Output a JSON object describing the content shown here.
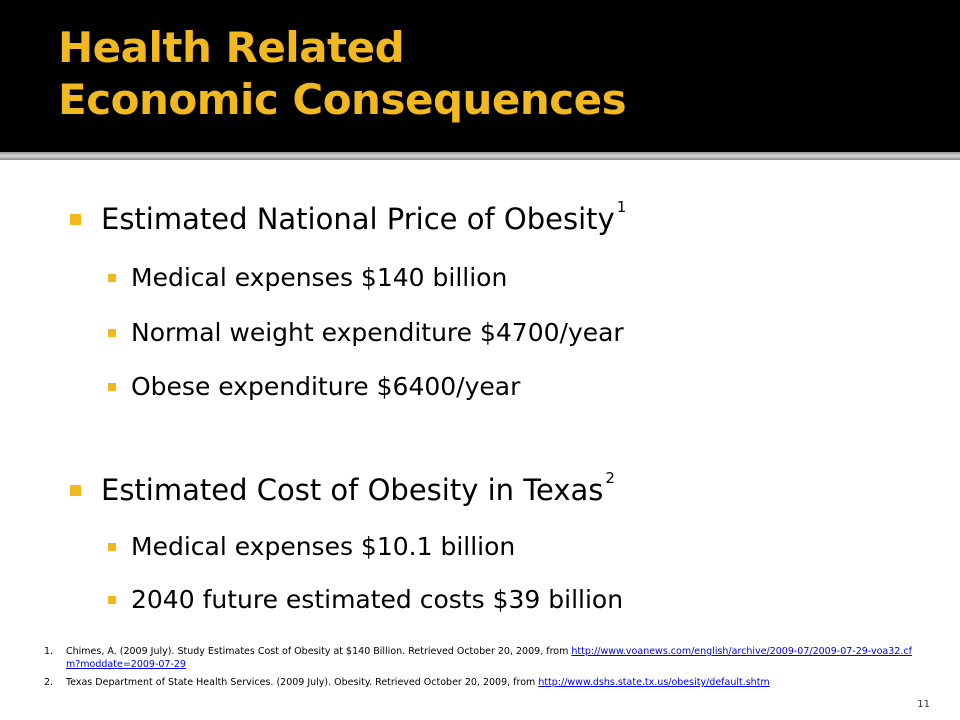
{
  "slide": {
    "title_line1": "Health Related",
    "title_line2": "Economic Consequences",
    "page_number": "11",
    "accent_color": "#f1b81f"
  },
  "bullets": [
    {
      "text": "Estimated National Price of Obesity",
      "sup": "1",
      "sub": [
        "Medical expenses $140 billion",
        "Normal weight expenditure $4700/year",
        "Obese expenditure $6400/year"
      ]
    },
    {
      "text": "Estimated Cost of Obesity in Texas",
      "sup": "2",
      "sub": [
        "Medical expenses $10.1 billion",
        "2040 future estimated costs $39 billion"
      ]
    }
  ],
  "references": [
    {
      "num": "1.",
      "text": "Chimes, A. (2009 July). Study Estimates Cost of Obesity at $140 Billion. Retrieved October 20, 2009, from ",
      "link": "http://www.voanews.com/english/archive/2009-07/2009-07-29-voa32.cfm?moddate=2009-07-29"
    },
    {
      "num": "2.",
      "text": "Texas Department of State Health Services. (2009 July). Obesity. Retrieved October 20, 2009, from ",
      "link": "http://www.dshs.state.tx.us/obesity/default.shtm"
    }
  ]
}
